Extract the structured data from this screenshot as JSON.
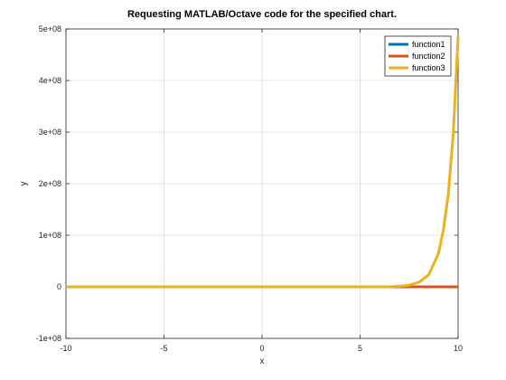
{
  "chart_data": {
    "type": "line",
    "title": "Requesting MATLAB/Octave code for the specified chart.",
    "xlabel": "x",
    "ylabel": "y",
    "xlim": [
      -10,
      10
    ],
    "ylim": [
      -100000000,
      500000000
    ],
    "xticks": [
      -10,
      -5,
      0,
      5,
      10
    ],
    "xtick_labels": [
      "-10",
      "-5",
      "0",
      "5",
      "10"
    ],
    "yticks": [
      -100000000,
      0,
      100000000,
      200000000,
      300000000,
      400000000,
      500000000
    ],
    "ytick_labels": [
      "-1e+08",
      "0",
      "1e+08",
      "2e+08",
      "3e+08",
      "4e+08",
      "5e+08"
    ],
    "grid": true,
    "legend_position": "top-right",
    "x": [
      -10,
      0,
      6,
      6.5,
      7,
      7.5,
      8,
      8.5,
      9,
      9.25,
      9.5,
      9.75,
      10
    ],
    "series": [
      {
        "name": "function1",
        "color": "#0072BD",
        "values": [
          0,
          0,
          0,
          0,
          0,
          0,
          0,
          0,
          0,
          0,
          0,
          0,
          0
        ]
      },
      {
        "name": "function2",
        "color": "#D95319",
        "values": [
          0,
          0,
          0,
          0,
          0,
          0,
          0,
          0,
          0,
          0,
          0,
          0,
          0
        ]
      },
      {
        "name": "function3",
        "color": "#EDB120",
        "values": [
          0,
          0,
          0,
          0,
          1000000,
          3000000,
          9000000,
          23000000,
          65000000,
          110000000,
          180000000,
          295000000,
          485000000
        ]
      }
    ]
  }
}
